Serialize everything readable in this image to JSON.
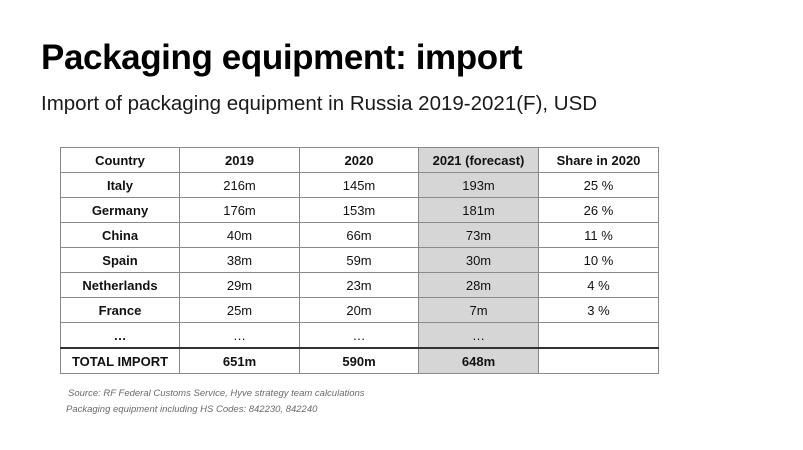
{
  "slide": {
    "title": "Packaging equipment: import",
    "subtitle": "Import of packaging equipment in Russia 2019-2021(F), USD"
  },
  "table": {
    "headers": [
      "Country",
      "2019",
      "2020",
      "2021 (forecast)",
      "Share in 2020"
    ],
    "rows": [
      {
        "country": "Italy",
        "y2019": "216m",
        "y2020": "145m",
        "y2021": "193m",
        "share": "25 %"
      },
      {
        "country": "Germany",
        "y2019": "176m",
        "y2020": "153m",
        "y2021": "181m",
        "share": "26 %"
      },
      {
        "country": "China",
        "y2019": "40m",
        "y2020": "66m",
        "y2021": "73m",
        "share": "11 %"
      },
      {
        "country": "Spain",
        "y2019": "38m",
        "y2020": "59m",
        "y2021": "30m",
        "share": "10 %"
      },
      {
        "country": "Netherlands",
        "y2019": "29m",
        "y2020": "23m",
        "y2021": "28m",
        "share": "4 %"
      },
      {
        "country": "France",
        "y2019": "25m",
        "y2020": "20m",
        "y2021": "7m",
        "share": "3 %"
      },
      {
        "country": "…",
        "y2019": "…",
        "y2020": "…",
        "y2021": "…",
        "share": ""
      }
    ],
    "total": {
      "label": "TOTAL IMPORT",
      "y2019": "651m",
      "y2020": "590m",
      "y2021": "648m",
      "share": ""
    },
    "highlight_color": "#d6d6d6"
  },
  "footnotes": {
    "source": "Source: RF Federal Customs Service, Hyve strategy team calculations",
    "hs_codes": "Packaging equipment including HS Codes: 842230, 842240"
  }
}
